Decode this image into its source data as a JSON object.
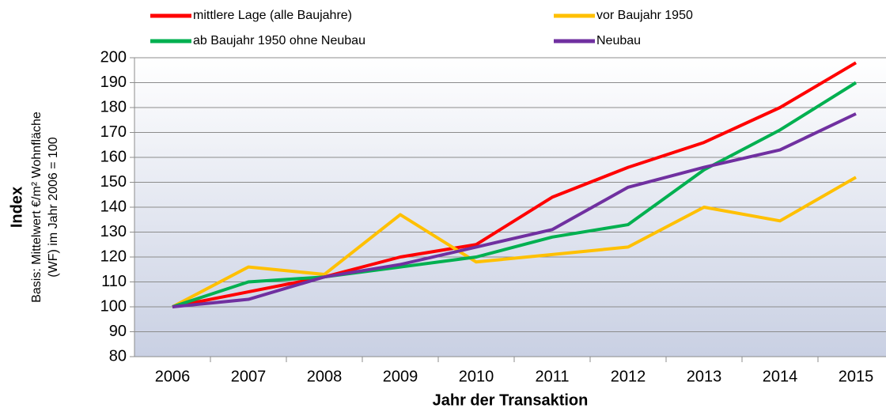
{
  "chart_data": {
    "type": "line",
    "categories": [
      "2006",
      "2007",
      "2008",
      "2009",
      "2010",
      "2011",
      "2012",
      "2013",
      "2014",
      "2015"
    ],
    "series": [
      {
        "name": "mittlere Lage (alle Baujahre)",
        "color": "#ff0000",
        "values": [
          100,
          106,
          112,
          120,
          125,
          144,
          156,
          166,
          180,
          198
        ]
      },
      {
        "name": "vor Baujahr 1950",
        "color": "#ffc000",
        "values": [
          100,
          116,
          113,
          137,
          118,
          121,
          124,
          140,
          134.5,
          152
        ]
      },
      {
        "name": "ab Baujahr 1950 ohne Neubau",
        "color": "#00b050",
        "values": [
          100,
          110,
          112,
          116,
          120,
          128,
          133,
          155,
          171,
          190
        ]
      },
      {
        "name": "Neubau",
        "color": "#7030a0",
        "values": [
          100,
          103,
          112,
          117,
          124,
          131,
          148,
          156,
          163,
          177.5
        ]
      }
    ],
    "ylim": [
      80,
      200
    ],
    "yticks": [
      80,
      90,
      100,
      110,
      120,
      130,
      140,
      150,
      160,
      170,
      180,
      190,
      200
    ],
    "grid": true,
    "legend": "top",
    "x_label": "Jahr der Transaktion",
    "y_label": "Index",
    "y_sublabel": [
      "Basis: Mittelwert €/m² Wohnfläche",
      "(WF) im Jahr 2006 = 100"
    ]
  }
}
